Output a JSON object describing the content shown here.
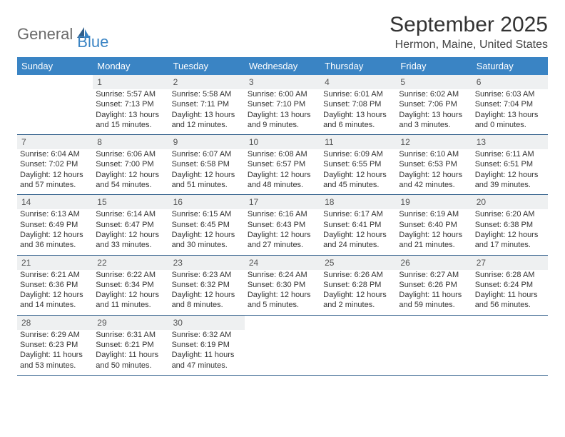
{
  "brand": {
    "part1": "General",
    "part2": "Blue"
  },
  "title": "September 2025",
  "location": "Hermon, Maine, United States",
  "colors": {
    "header_bg": "#3a84c4",
    "header_text": "#ffffff",
    "daynum_bg": "#eef0f1",
    "rule": "#2f5e8a",
    "brand_gray": "#6b6b6b",
    "brand_blue": "#3a84c4"
  },
  "day_names": [
    "Sunday",
    "Monday",
    "Tuesday",
    "Wednesday",
    "Thursday",
    "Friday",
    "Saturday"
  ],
  "first_weekday_index": 1,
  "days_in_month": 30,
  "days": {
    "1": {
      "sunrise": "5:57 AM",
      "sunset": "7:13 PM",
      "daylight": "13 hours and 15 minutes."
    },
    "2": {
      "sunrise": "5:58 AM",
      "sunset": "7:11 PM",
      "daylight": "13 hours and 12 minutes."
    },
    "3": {
      "sunrise": "6:00 AM",
      "sunset": "7:10 PM",
      "daylight": "13 hours and 9 minutes."
    },
    "4": {
      "sunrise": "6:01 AM",
      "sunset": "7:08 PM",
      "daylight": "13 hours and 6 minutes."
    },
    "5": {
      "sunrise": "6:02 AM",
      "sunset": "7:06 PM",
      "daylight": "13 hours and 3 minutes."
    },
    "6": {
      "sunrise": "6:03 AM",
      "sunset": "7:04 PM",
      "daylight": "13 hours and 0 minutes."
    },
    "7": {
      "sunrise": "6:04 AM",
      "sunset": "7:02 PM",
      "daylight": "12 hours and 57 minutes."
    },
    "8": {
      "sunrise": "6:06 AM",
      "sunset": "7:00 PM",
      "daylight": "12 hours and 54 minutes."
    },
    "9": {
      "sunrise": "6:07 AM",
      "sunset": "6:58 PM",
      "daylight": "12 hours and 51 minutes."
    },
    "10": {
      "sunrise": "6:08 AM",
      "sunset": "6:57 PM",
      "daylight": "12 hours and 48 minutes."
    },
    "11": {
      "sunrise": "6:09 AM",
      "sunset": "6:55 PM",
      "daylight": "12 hours and 45 minutes."
    },
    "12": {
      "sunrise": "6:10 AM",
      "sunset": "6:53 PM",
      "daylight": "12 hours and 42 minutes."
    },
    "13": {
      "sunrise": "6:11 AM",
      "sunset": "6:51 PM",
      "daylight": "12 hours and 39 minutes."
    },
    "14": {
      "sunrise": "6:13 AM",
      "sunset": "6:49 PM",
      "daylight": "12 hours and 36 minutes."
    },
    "15": {
      "sunrise": "6:14 AM",
      "sunset": "6:47 PM",
      "daylight": "12 hours and 33 minutes."
    },
    "16": {
      "sunrise": "6:15 AM",
      "sunset": "6:45 PM",
      "daylight": "12 hours and 30 minutes."
    },
    "17": {
      "sunrise": "6:16 AM",
      "sunset": "6:43 PM",
      "daylight": "12 hours and 27 minutes."
    },
    "18": {
      "sunrise": "6:17 AM",
      "sunset": "6:41 PM",
      "daylight": "12 hours and 24 minutes."
    },
    "19": {
      "sunrise": "6:19 AM",
      "sunset": "6:40 PM",
      "daylight": "12 hours and 21 minutes."
    },
    "20": {
      "sunrise": "6:20 AM",
      "sunset": "6:38 PM",
      "daylight": "12 hours and 17 minutes."
    },
    "21": {
      "sunrise": "6:21 AM",
      "sunset": "6:36 PM",
      "daylight": "12 hours and 14 minutes."
    },
    "22": {
      "sunrise": "6:22 AM",
      "sunset": "6:34 PM",
      "daylight": "12 hours and 11 minutes."
    },
    "23": {
      "sunrise": "6:23 AM",
      "sunset": "6:32 PM",
      "daylight": "12 hours and 8 minutes."
    },
    "24": {
      "sunrise": "6:24 AM",
      "sunset": "6:30 PM",
      "daylight": "12 hours and 5 minutes."
    },
    "25": {
      "sunrise": "6:26 AM",
      "sunset": "6:28 PM",
      "daylight": "12 hours and 2 minutes."
    },
    "26": {
      "sunrise": "6:27 AM",
      "sunset": "6:26 PM",
      "daylight": "11 hours and 59 minutes."
    },
    "27": {
      "sunrise": "6:28 AM",
      "sunset": "6:24 PM",
      "daylight": "11 hours and 56 minutes."
    },
    "28": {
      "sunrise": "6:29 AM",
      "sunset": "6:23 PM",
      "daylight": "11 hours and 53 minutes."
    },
    "29": {
      "sunrise": "6:31 AM",
      "sunset": "6:21 PM",
      "daylight": "11 hours and 50 minutes."
    },
    "30": {
      "sunrise": "6:32 AM",
      "sunset": "6:19 PM",
      "daylight": "11 hours and 47 minutes."
    }
  },
  "labels": {
    "sunrise_prefix": "Sunrise: ",
    "sunset_prefix": "Sunset: ",
    "daylight_prefix": "Daylight: "
  }
}
